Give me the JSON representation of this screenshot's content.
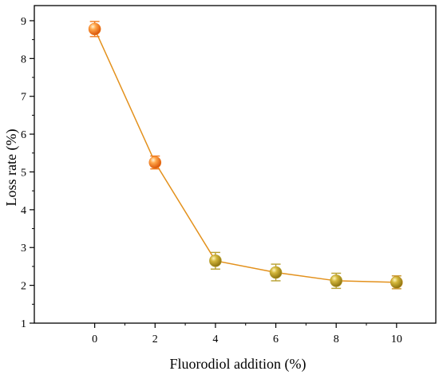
{
  "chart_data": {
    "type": "line",
    "xlabel": "Fluorodiol addition (%)",
    "ylabel": "Loss rate (%)",
    "xlim": [
      -2,
      11.3
    ],
    "ylim": [
      1,
      9.4
    ],
    "x_ticks": [
      0,
      2,
      4,
      6,
      8,
      10
    ],
    "y_ticks": [
      1,
      2,
      3,
      4,
      5,
      6,
      7,
      8,
      9
    ],
    "grid": false,
    "series": [
      {
        "x": [
          0,
          2,
          4,
          6,
          8,
          10
        ],
        "y": [
          8.78,
          5.25,
          2.65,
          2.34,
          2.12,
          2.08
        ],
        "error": [
          0.2,
          0.17,
          0.22,
          0.22,
          0.2,
          0.17
        ],
        "line_color": "#E3911C",
        "marker_colors": [
          "#F07B1C",
          "#F07B1C",
          "#B8A030",
          "#B8A030",
          "#B8A030",
          "#C79228"
        ]
      }
    ]
  }
}
